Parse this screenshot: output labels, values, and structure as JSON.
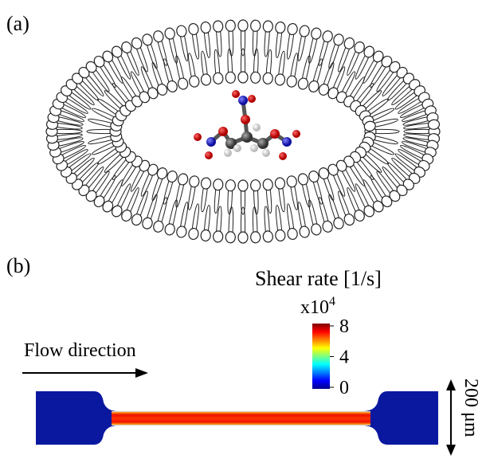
{
  "panels": {
    "a": {
      "label": "(a)"
    },
    "b": {
      "label": "(b)"
    }
  },
  "colorbar": {
    "title": "Shear rate [1/s]",
    "multiplier": "x10",
    "exponent": "4",
    "lim": [
      0,
      8
    ],
    "ticks": [
      8,
      4,
      0
    ]
  },
  "flow_label": "Flow direction",
  "scale_label": "200 μm"
}
